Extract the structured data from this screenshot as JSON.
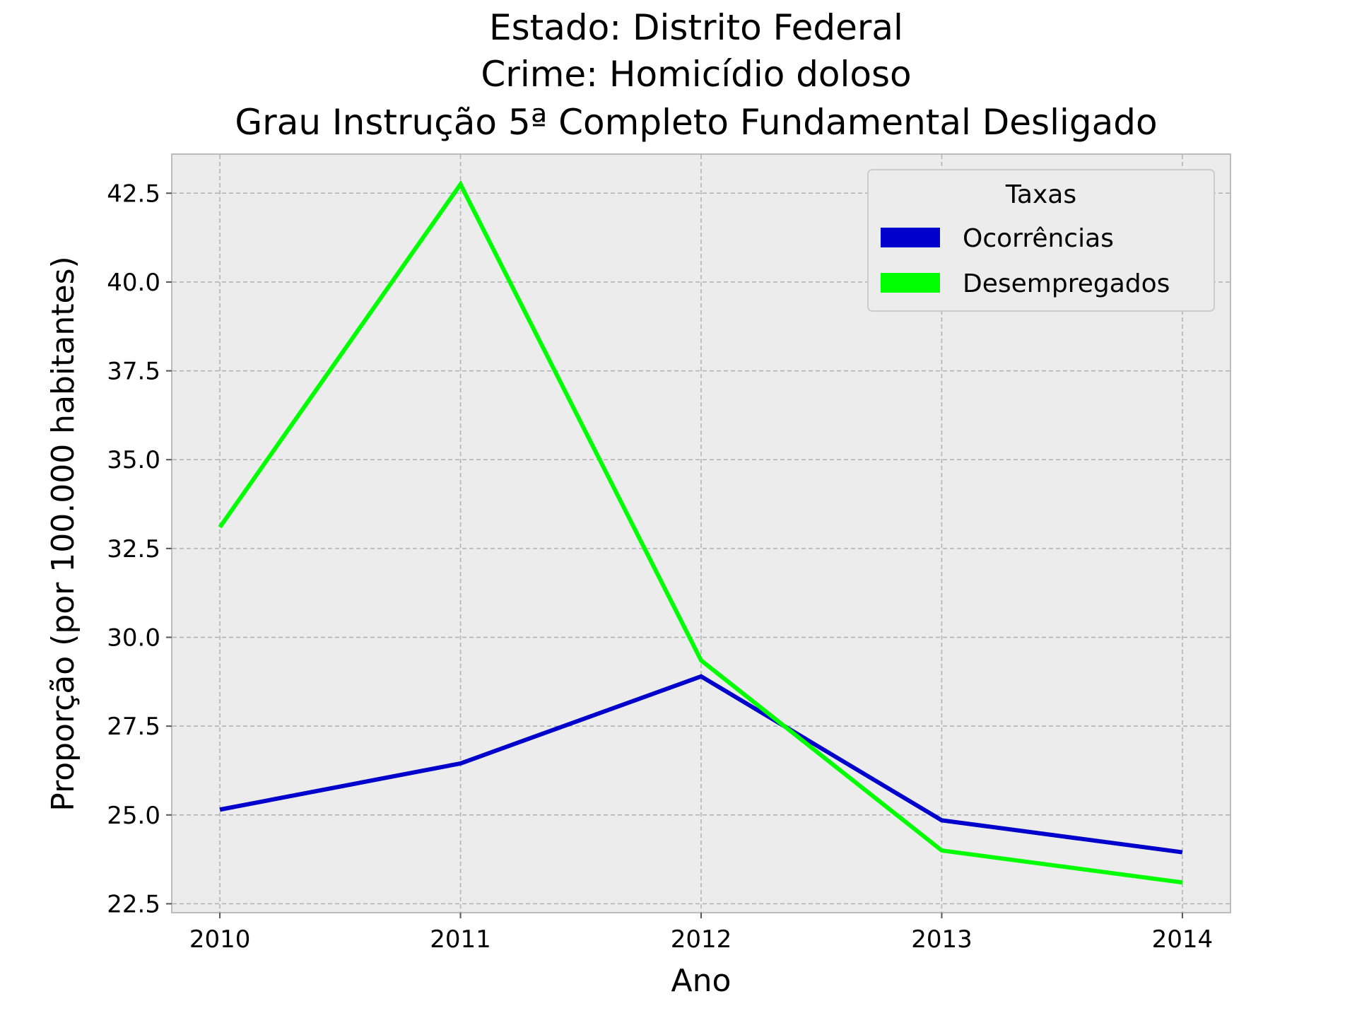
{
  "chart_data": {
    "type": "line",
    "title_lines": [
      "Estado: Distrito Federal",
      "Crime: Homicídio doloso",
      "Grau Instrução  5ª Completo Fundamental   Desligado"
    ],
    "xlabel": "Ano",
    "ylabel": "Proporção (por 100.000 habitantes)",
    "x": [
      2010,
      2011,
      2012,
      2013,
      2014
    ],
    "x_tick_labels": [
      "2010",
      "2011",
      "2012",
      "2013",
      "2014"
    ],
    "y_ticks": [
      22.5,
      25.0,
      27.5,
      30.0,
      32.5,
      35.0,
      37.5,
      40.0,
      42.5
    ],
    "y_tick_labels": [
      "22.5",
      "25.0",
      "27.5",
      "30.0",
      "32.5",
      "35.0",
      "37.5",
      "40.0",
      "42.5"
    ],
    "xlim": [
      2009.8,
      2014.2
    ],
    "ylim": [
      22.25,
      43.6
    ],
    "grid": true,
    "legend": {
      "title": "Taxas",
      "position": "top-right"
    },
    "series": [
      {
        "name": "Ocorrências",
        "color": "#0000cc",
        "values": [
          25.15,
          26.45,
          28.9,
          24.85,
          23.95
        ]
      },
      {
        "name": "Desempregados",
        "color": "#00ff00",
        "values": [
          33.1,
          42.75,
          29.35,
          24.0,
          23.1
        ]
      }
    ]
  }
}
